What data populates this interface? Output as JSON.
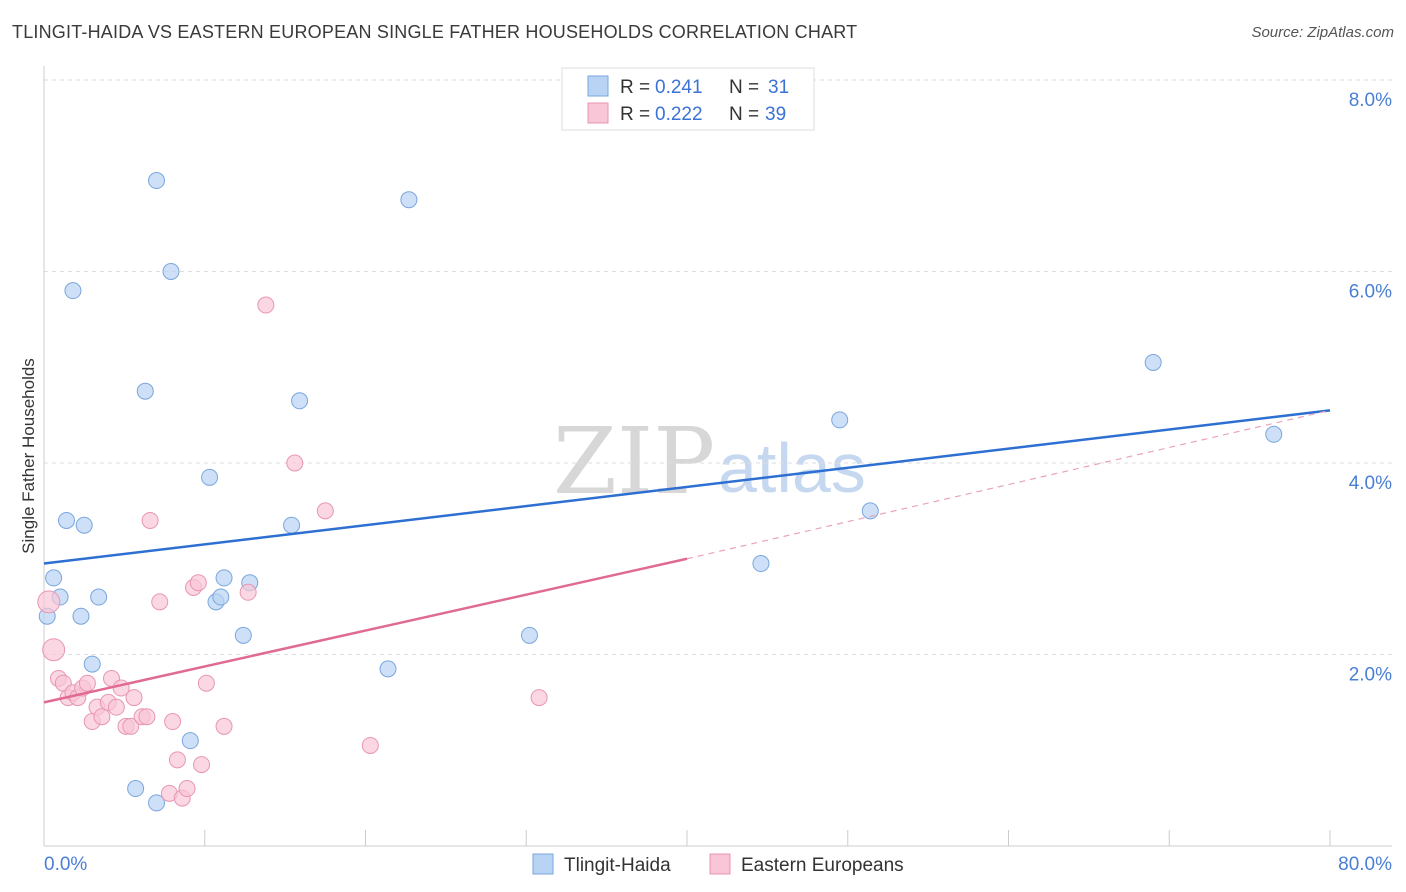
{
  "title": "TLINGIT-HAIDA VS EASTERN EUROPEAN SINGLE FATHER HOUSEHOLDS CORRELATION CHART",
  "source": "Source: ZipAtlas.com",
  "watermark": {
    "part1": "ZIP",
    "part2": "atlas"
  },
  "legend": {
    "r_label": "R =",
    "n_label": "N =",
    "rows": [
      {
        "r": "0.241",
        "n": "31",
        "series": "Tlingit-Haida"
      },
      {
        "r": "0.222",
        "n": "39",
        "series": "Eastern Europeans"
      }
    ]
  },
  "colors": {
    "blue_fill": "#b8d3f3",
    "blue_stroke": "#7aa6dc",
    "blue_line": "#2e6fd2",
    "pink_fill": "#f8c6d6",
    "pink_stroke": "#e896b3",
    "pink_line": "#e06a93",
    "axis_label": "#4a7fd4",
    "grid": "#dddddd"
  },
  "chart_data": {
    "type": "scatter",
    "title": "TLINGIT-HAIDA VS EASTERN EUROPEAN SINGLE FATHER HOUSEHOLDS CORRELATION CHART",
    "xlabel": "",
    "ylabel": "Single Father Households",
    "xlim": [
      0,
      80
    ],
    "ylim": [
      0,
      8
    ],
    "x_tick_labels": [
      "0.0%",
      "80.0%"
    ],
    "y_ticks": [
      2,
      4,
      6,
      8
    ],
    "y_tick_labels": [
      "2.0%",
      "4.0%",
      "6.0%",
      "8.0%"
    ],
    "grid": true,
    "legend_position": "top-center",
    "series": [
      {
        "name": "Tlingit-Haida",
        "color": "#b8d3f3",
        "points": [
          [
            0.2,
            2.4
          ],
          [
            0.6,
            2.8
          ],
          [
            1.0,
            2.6
          ],
          [
            1.4,
            3.4
          ],
          [
            1.8,
            5.8
          ],
          [
            2.3,
            2.4
          ],
          [
            2.5,
            3.35
          ],
          [
            3.0,
            1.9
          ],
          [
            3.4,
            2.6
          ],
          [
            5.7,
            0.6
          ],
          [
            6.3,
            4.75
          ],
          [
            7.0,
            6.95
          ],
          [
            7.0,
            0.45
          ],
          [
            7.9,
            6.0
          ],
          [
            9.1,
            1.1
          ],
          [
            10.3,
            3.85
          ],
          [
            10.7,
            2.55
          ],
          [
            11.0,
            2.6
          ],
          [
            11.2,
            2.8
          ],
          [
            12.4,
            2.2
          ],
          [
            12.8,
            2.75
          ],
          [
            15.4,
            3.35
          ],
          [
            15.9,
            4.65
          ],
          [
            21.4,
            1.85
          ],
          [
            22.7,
            6.75
          ],
          [
            30.2,
            2.2
          ],
          [
            44.6,
            2.95
          ],
          [
            49.5,
            4.45
          ],
          [
            51.4,
            3.5
          ],
          [
            69.0,
            5.05
          ],
          [
            76.5,
            4.3
          ]
        ],
        "trend": {
          "x0": 0,
          "y0": 2.95,
          "x1": 80,
          "y1": 4.55,
          "style": "solid"
        }
      },
      {
        "name": "Eastern Europeans",
        "color": "#f8c6d6",
        "points": [
          [
            0.3,
            2.55
          ],
          [
            0.6,
            2.05
          ],
          [
            0.9,
            1.75
          ],
          [
            1.2,
            1.7
          ],
          [
            1.5,
            1.55
          ],
          [
            1.8,
            1.6
          ],
          [
            2.1,
            1.55
          ],
          [
            2.4,
            1.65
          ],
          [
            2.7,
            1.7
          ],
          [
            3.0,
            1.3
          ],
          [
            3.3,
            1.45
          ],
          [
            3.6,
            1.35
          ],
          [
            4.0,
            1.5
          ],
          [
            4.2,
            1.75
          ],
          [
            4.5,
            1.45
          ],
          [
            4.8,
            1.65
          ],
          [
            5.1,
            1.25
          ],
          [
            5.4,
            1.25
          ],
          [
            5.6,
            1.55
          ],
          [
            6.1,
            1.35
          ],
          [
            6.4,
            1.35
          ],
          [
            6.6,
            3.4
          ],
          [
            7.2,
            2.55
          ],
          [
            7.8,
            0.55
          ],
          [
            8.0,
            1.3
          ],
          [
            8.3,
            0.9
          ],
          [
            8.6,
            0.5
          ],
          [
            8.9,
            0.6
          ],
          [
            9.3,
            2.7
          ],
          [
            9.6,
            2.75
          ],
          [
            9.8,
            0.85
          ],
          [
            10.1,
            1.7
          ],
          [
            11.2,
            1.25
          ],
          [
            12.7,
            2.65
          ],
          [
            13.8,
            5.65
          ],
          [
            15.6,
            4.0
          ],
          [
            17.5,
            3.5
          ],
          [
            20.3,
            1.05
          ],
          [
            30.8,
            1.55
          ]
        ],
        "trend": {
          "x0": 0,
          "y0": 1.5,
          "x1": 40,
          "y1": 3.0,
          "style": "solid",
          "extension": {
            "x0": 40,
            "y0": 3.0,
            "x1": 80,
            "y1": 4.55,
            "style": "dashed"
          }
        }
      }
    ]
  }
}
